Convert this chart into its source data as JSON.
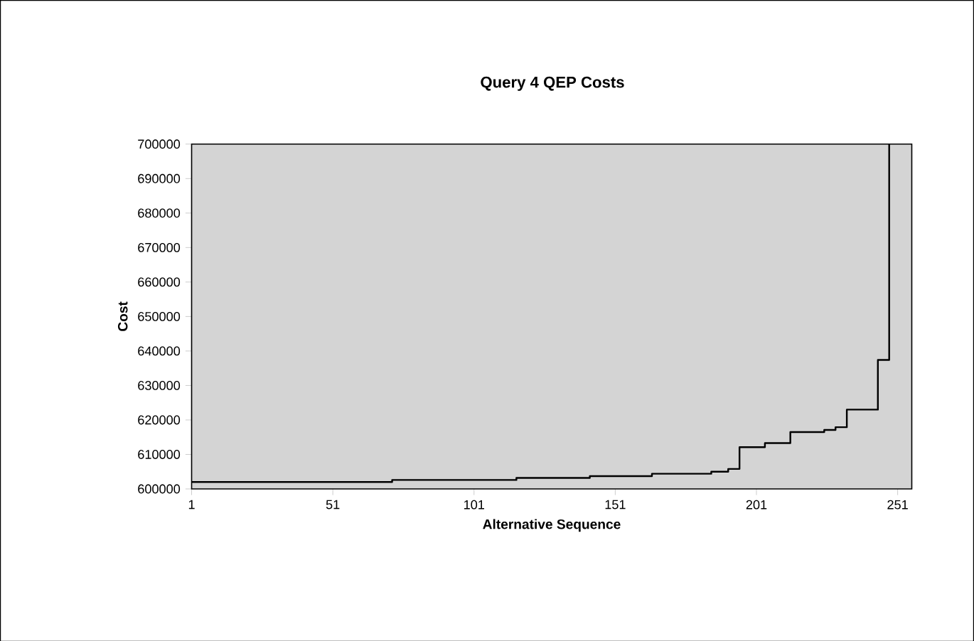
{
  "chart_data": {
    "type": "step",
    "title": "Query 4 QEP Costs",
    "xlabel": "Alternative Sequence",
    "ylabel": "Cost",
    "x": [
      1,
      72,
      116,
      142,
      164,
      185,
      191,
      195,
      204,
      213,
      225,
      229,
      233,
      244,
      248
    ],
    "series": [
      {
        "color": "#000000",
        "values": [
          602000,
          602600,
          603200,
          603700,
          604400,
          605000,
          605800,
          612100,
          613300,
          616500,
          617100,
          617900,
          623000,
          637400,
          700000
        ]
      }
    ],
    "xlim": [
      1,
      256
    ],
    "xticks": [
      1,
      51,
      101,
      151,
      201,
      251
    ],
    "ylim": [
      600000,
      700000
    ],
    "yticks": [
      600000,
      610000,
      620000,
      630000,
      640000,
      650000,
      660000,
      670000,
      680000,
      690000,
      700000
    ],
    "grid": false,
    "marker": "none",
    "line_style": "solid"
  }
}
